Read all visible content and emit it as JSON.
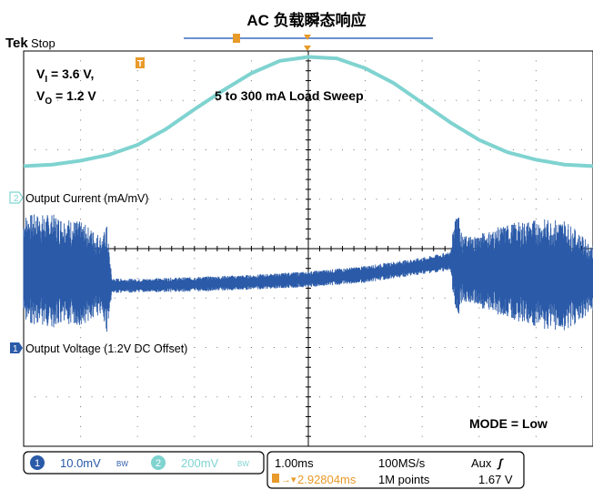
{
  "title": "AC 负载瞬态响应",
  "scope": {
    "brand": "Tek",
    "run_state": "Stop",
    "trigger_marker": "T"
  },
  "annotations": {
    "vin_main": "V",
    "vin_sub": "I",
    "vin_value": " = 3.6 V,",
    "vout_main": "V",
    "vout_sub": "O",
    "vout_value": " = 1.2 V",
    "sweep": "5 to 300 mA Load Sweep",
    "mode": "MODE = Low"
  },
  "channels": [
    {
      "number": "2",
      "label": "Output Current (mA/mV)",
      "color": "#7fd3d0"
    },
    {
      "number": "1",
      "label": "Output Voltage (1.2V DC Offset)",
      "color": "#2a5aa8"
    }
  ],
  "status_bar": {
    "ch1_number": "1",
    "ch1_scale": "10.0mV",
    "ch1_bw": "BW",
    "ch2_number": "2",
    "ch2_scale": "200mV",
    "ch2_bw": "BW",
    "timebase": "1.00ms",
    "sample_rate": "100MS/s",
    "trigger_source": "Aux",
    "trigger_slope": "ʃ",
    "trigger_offset": "2.92804ms",
    "record_length": "1M points",
    "trigger_level": "1.67 V"
  },
  "chart_data": {
    "type": "line",
    "x_divisions": 10,
    "y_divisions": 8,
    "series": [
      {
        "name": "Output Current (mA/mV)",
        "color": "#7fd3d0",
        "x_div": [
          0.0,
          0.5,
          1.0,
          1.5,
          2.0,
          2.5,
          3.0,
          3.5,
          4.0,
          4.5,
          5.0,
          5.5,
          6.0,
          6.5,
          7.0,
          7.5,
          8.0,
          8.5,
          9.0,
          9.5,
          10.0
        ],
        "y_div": [
          -0.33,
          -0.3,
          -0.22,
          -0.1,
          0.1,
          0.42,
          0.82,
          1.2,
          1.55,
          1.8,
          1.88,
          1.85,
          1.65,
          1.35,
          0.95,
          0.55,
          0.2,
          -0.05,
          -0.2,
          -0.3,
          -0.33
        ]
      },
      {
        "name": "Output Voltage (1.2V DC Offset)",
        "color": "#2a5aa8",
        "x_div": [
          0.0,
          0.5,
          1.0,
          1.4,
          1.45,
          1.55,
          2.0,
          3.0,
          4.0,
          5.0,
          6.0,
          7.0,
          7.5,
          7.6,
          7.7,
          8.0,
          8.5,
          9.0,
          9.5,
          10.0
        ],
        "y_div": [
          -0.4,
          -0.45,
          -0.5,
          -0.55,
          -0.6,
          -0.75,
          -0.75,
          -0.72,
          -0.68,
          -0.62,
          -0.52,
          -0.35,
          -0.25,
          -0.3,
          -0.4,
          -0.45,
          -0.45,
          -0.5,
          -0.55,
          -0.6
        ],
        "envelope_div": [
          2.2,
          2.3,
          2.1,
          1.6,
          2.4,
          0.3,
          0.28,
          0.3,
          0.3,
          0.32,
          0.34,
          0.34,
          0.38,
          2.6,
          1.3,
          1.5,
          1.9,
          2.2,
          2.3,
          1.3
        ]
      }
    ]
  }
}
